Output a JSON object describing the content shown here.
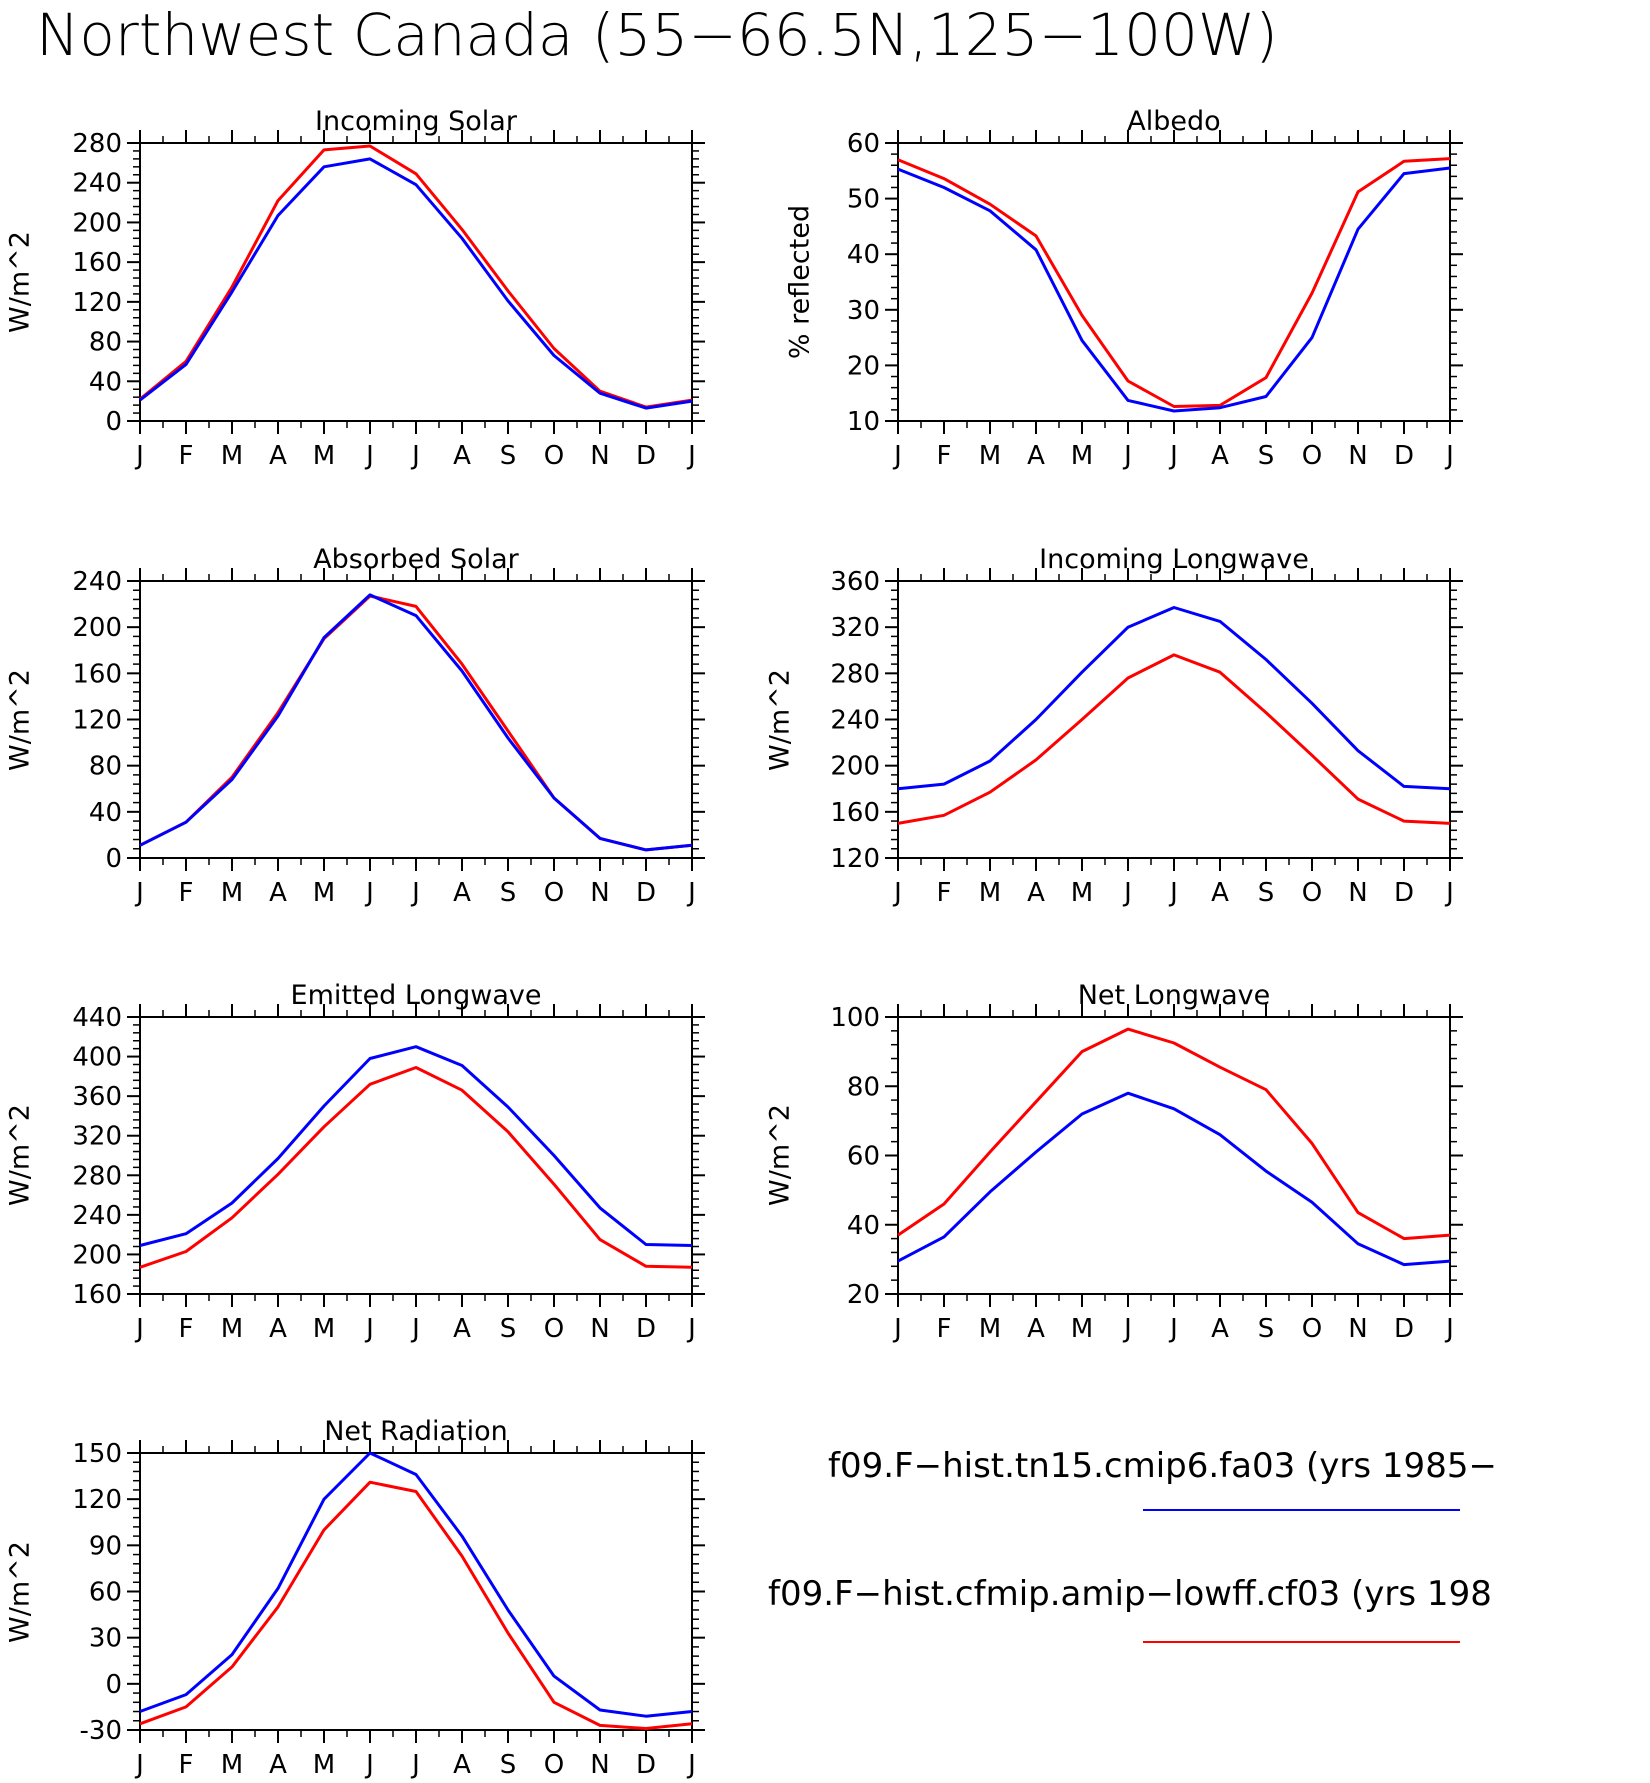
{
  "figure": {
    "title": "Northwest Canada (55−66.5N,125−100W)"
  },
  "legend": [
    {
      "name": "f09.F−hist.tn15.cmip6.fa03 (yrs 1985−",
      "color": "#0000ff"
    },
    {
      "name": "f09.F−hist.cfmip.amip−lowff.cf03 (yrs 198",
      "color": "#ff0000"
    }
  ],
  "chart_data": [
    {
      "type": "line",
      "title": "Incoming Solar",
      "ylabel": "W/m^2",
      "categories": [
        "J",
        "F",
        "M",
        "A",
        "M",
        "J",
        "J",
        "A",
        "S",
        "O",
        "N",
        "D",
        "J"
      ],
      "ylim": [
        0,
        280
      ],
      "yticks": [
        0,
        40,
        80,
        120,
        160,
        200,
        240,
        280
      ],
      "series": [
        {
          "color": "#0000ff",
          "values": [
            21,
            57,
            130,
            207,
            256,
            264,
            238,
            184,
            121,
            66,
            28,
            13,
            20
          ]
        },
        {
          "color": "#ff0000",
          "values": [
            22,
            60,
            135,
            222,
            273,
            277,
            249,
            193,
            131,
            73,
            30,
            14,
            21
          ]
        }
      ]
    },
    {
      "type": "line",
      "title": "Albedo",
      "ylabel": "% reflected",
      "categories": [
        "J",
        "F",
        "M",
        "A",
        "M",
        "J",
        "J",
        "A",
        "S",
        "O",
        "N",
        "D",
        "J"
      ],
      "ylim": [
        10,
        60
      ],
      "yticks": [
        10,
        20,
        30,
        40,
        50,
        60
      ],
      "series": [
        {
          "color": "#0000ff",
          "values": [
            55.3,
            52,
            47.8,
            40.8,
            24.5,
            13.7,
            11.8,
            12.4,
            14.4,
            25,
            44.5,
            54.5,
            55.5
          ]
        },
        {
          "color": "#ff0000",
          "values": [
            57,
            53.6,
            49,
            43.3,
            29,
            17.2,
            12.6,
            12.8,
            17.8,
            33,
            51.2,
            56.7,
            57.2
          ]
        }
      ]
    },
    {
      "type": "line",
      "title": "Absorbed Solar",
      "ylabel": "W/m^2",
      "categories": [
        "J",
        "F",
        "M",
        "A",
        "M",
        "J",
        "J",
        "A",
        "S",
        "O",
        "N",
        "D",
        "J"
      ],
      "ylim": [
        0,
        240
      ],
      "yticks": [
        0,
        40,
        80,
        120,
        160,
        200,
        240
      ],
      "series": [
        {
          "color": "#0000ff",
          "values": [
            11,
            31,
            68,
            123,
            191,
            228,
            210,
            162,
            104,
            52,
            17,
            7,
            11
          ]
        },
        {
          "color": "#ff0000",
          "values": [
            11,
            31,
            70,
            126,
            190,
            227,
            218,
            168,
            110,
            52,
            17,
            7,
            11
          ]
        }
      ]
    },
    {
      "type": "line",
      "title": "Incoming Longwave",
      "ylabel": "W/m^2",
      "categories": [
        "J",
        "F",
        "M",
        "A",
        "M",
        "J",
        "J",
        "A",
        "S",
        "O",
        "N",
        "D",
        "J"
      ],
      "ylim": [
        120,
        360
      ],
      "yticks": [
        120,
        160,
        200,
        240,
        280,
        320,
        360
      ],
      "series": [
        {
          "color": "#0000ff",
          "values": [
            180,
            184,
            204,
            240,
            281,
            320,
            337,
            325,
            292,
            254,
            213,
            182,
            180
          ]
        },
        {
          "color": "#ff0000",
          "values": [
            150,
            157,
            177,
            205,
            240,
            276,
            296,
            281,
            246,
            209,
            171,
            152,
            150
          ]
        }
      ]
    },
    {
      "type": "line",
      "title": "Emitted Longwave",
      "ylabel": "W/m^2",
      "categories": [
        "J",
        "F",
        "M",
        "A",
        "M",
        "J",
        "J",
        "A",
        "S",
        "O",
        "N",
        "D",
        "J"
      ],
      "ylim": [
        160,
        440
      ],
      "yticks": [
        160,
        200,
        240,
        280,
        320,
        360,
        400,
        440
      ],
      "series": [
        {
          "color": "#0000ff",
          "values": [
            209,
            221,
            252,
            297,
            350,
            398,
            410,
            391,
            349,
            300,
            247,
            210,
            209
          ]
        },
        {
          "color": "#ff0000",
          "values": [
            187,
            203,
            237,
            281,
            329,
            372,
            389,
            366,
            324,
            271,
            215,
            188,
            187
          ]
        }
      ]
    },
    {
      "type": "line",
      "title": "Net Longwave",
      "ylabel": "W/m^2",
      "categories": [
        "J",
        "F",
        "M",
        "A",
        "M",
        "J",
        "J",
        "A",
        "S",
        "O",
        "N",
        "D",
        "J"
      ],
      "ylim": [
        20,
        100
      ],
      "yticks": [
        20,
        40,
        60,
        80,
        100
      ],
      "series": [
        {
          "color": "#0000ff",
          "values": [
            29.5,
            36.5,
            49.5,
            61,
            72,
            78,
            73.5,
            66,
            55.5,
            46.5,
            34.5,
            28.5,
            29.5
          ]
        },
        {
          "color": "#ff0000",
          "values": [
            37,
            46,
            61,
            75.5,
            90,
            96.5,
            92.5,
            85.5,
            79,
            63.5,
            43.5,
            36,
            37
          ]
        }
      ]
    },
    {
      "type": "line",
      "title": "Net Radiation",
      "ylabel": "W/m^2",
      "categories": [
        "J",
        "F",
        "M",
        "A",
        "M",
        "J",
        "J",
        "A",
        "S",
        "O",
        "N",
        "D",
        "J"
      ],
      "ylim": [
        -30,
        150
      ],
      "yticks": [
        -30,
        0,
        30,
        60,
        90,
        120,
        150
      ],
      "series": [
        {
          "color": "#0000ff",
          "values": [
            -18,
            -7,
            19,
            62,
            120,
            150,
            136,
            96,
            48,
            5,
            -17,
            -21,
            -18
          ]
        },
        {
          "color": "#ff0000",
          "values": [
            -26,
            -15,
            11,
            50,
            100,
            131,
            125,
            83,
            33,
            -12,
            -27,
            -29,
            -26
          ]
        }
      ]
    }
  ]
}
